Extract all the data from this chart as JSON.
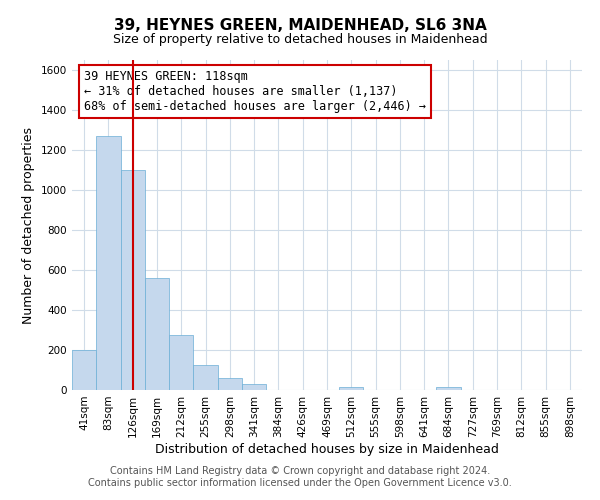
{
  "title": "39, HEYNES GREEN, MAIDENHEAD, SL6 3NA",
  "subtitle": "Size of property relative to detached houses in Maidenhead",
  "xlabel": "Distribution of detached houses by size in Maidenhead",
  "ylabel": "Number of detached properties",
  "bin_labels": [
    "41sqm",
    "83sqm",
    "126sqm",
    "169sqm",
    "212sqm",
    "255sqm",
    "298sqm",
    "341sqm",
    "384sqm",
    "426sqm",
    "469sqm",
    "512sqm",
    "555sqm",
    "598sqm",
    "641sqm",
    "684sqm",
    "727sqm",
    "769sqm",
    "812sqm",
    "855sqm",
    "898sqm"
  ],
  "bar_values": [
    200,
    1270,
    1100,
    560,
    275,
    125,
    60,
    30,
    0,
    0,
    0,
    15,
    0,
    0,
    0,
    15,
    0,
    0,
    0,
    0,
    0
  ],
  "bar_color": "#c5d8ed",
  "bar_edge_color": "#6aaed6",
  "vline_x": 2,
  "vline_color": "#cc0000",
  "annotation_line1": "39 HEYNES GREEN: 118sqm",
  "annotation_line2": "← 31% of detached houses are smaller (1,137)",
  "annotation_line3": "68% of semi-detached houses are larger (2,446) →",
  "annotation_box_color": "#ffffff",
  "annotation_box_edge_color": "#cc0000",
  "ylim": [
    0,
    1650
  ],
  "yticks": [
    0,
    200,
    400,
    600,
    800,
    1000,
    1200,
    1400,
    1600
  ],
  "footer_line1": "Contains HM Land Registry data © Crown copyright and database right 2024.",
  "footer_line2": "Contains public sector information licensed under the Open Government Licence v3.0.",
  "background_color": "#ffffff",
  "grid_color": "#d0dce8",
  "title_fontsize": 11,
  "subtitle_fontsize": 9,
  "axis_label_fontsize": 9,
  "tick_fontsize": 7.5,
  "annotation_fontsize": 8.5,
  "footer_fontsize": 7
}
